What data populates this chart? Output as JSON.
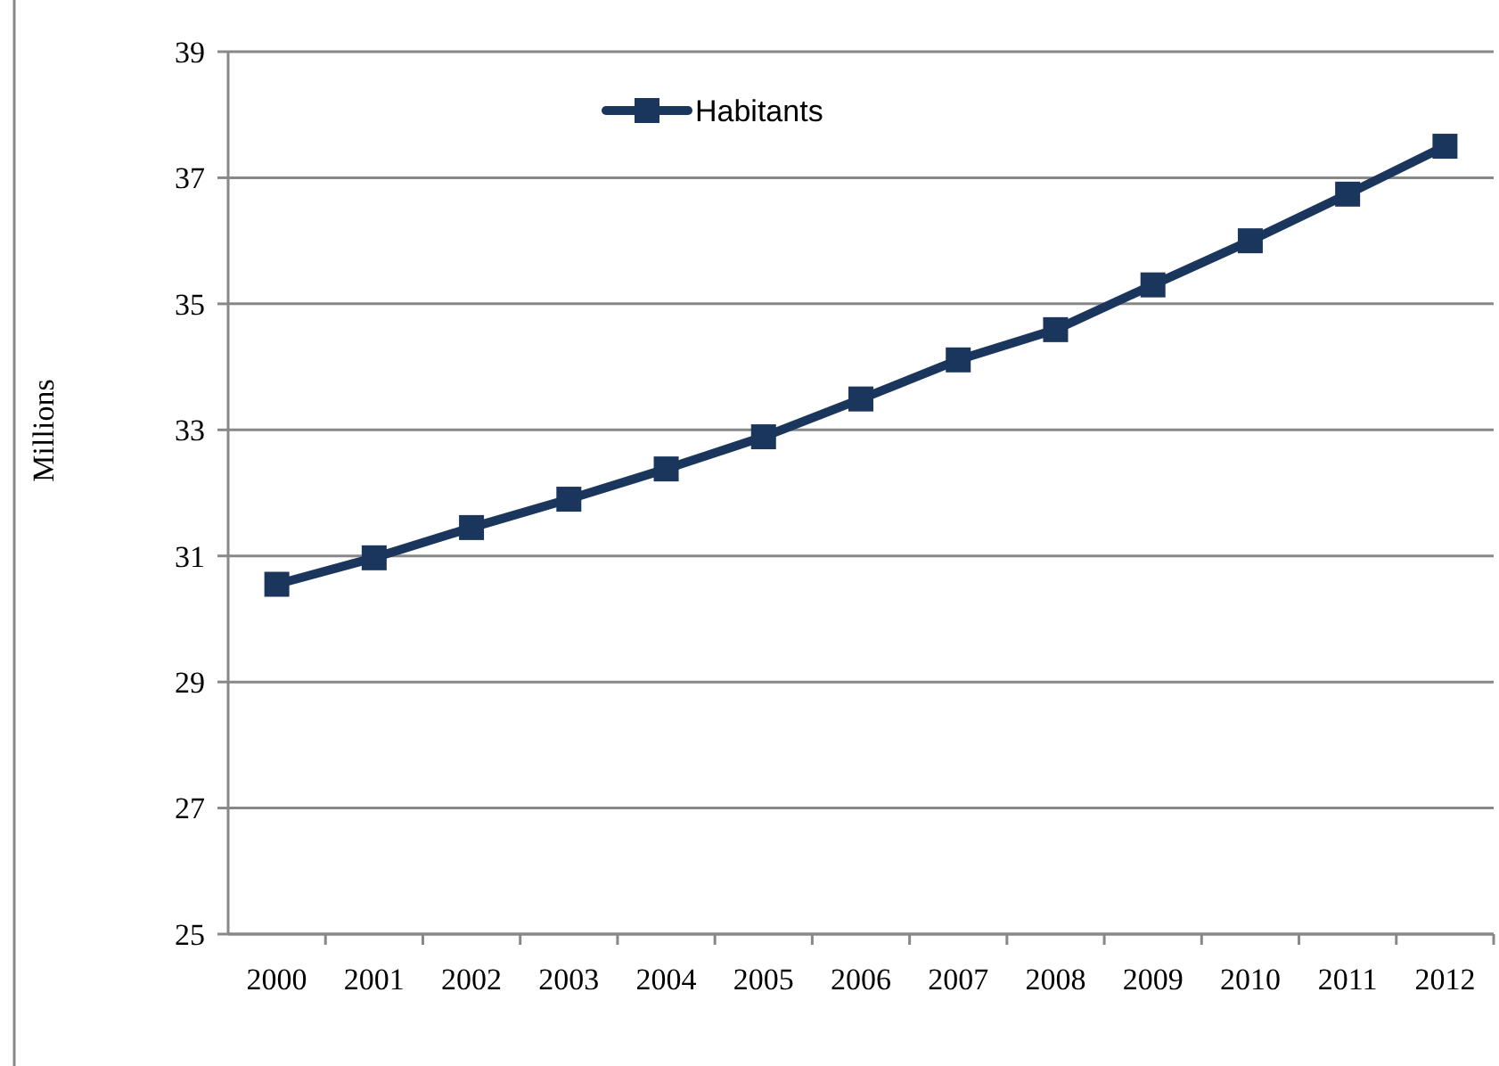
{
  "chart_data": {
    "type": "line",
    "ylabel": "Millions",
    "categories": [
      "2000",
      "2001",
      "2002",
      "2003",
      "2004",
      "2005",
      "2006",
      "2007",
      "2008",
      "2009",
      "2010",
      "2011",
      "2012"
    ],
    "series": [
      {
        "name": "Habitants",
        "color": "#1b365d",
        "values": [
          30.55,
          30.97,
          31.45,
          31.9,
          32.38,
          32.89,
          33.49,
          34.11,
          34.59,
          35.3,
          36.0,
          36.74,
          37.5
        ]
      }
    ],
    "ylim": [
      25,
      39
    ],
    "yticks": [
      25,
      27,
      29,
      31,
      33,
      35,
      37,
      39
    ],
    "grid": "y",
    "legend": "top",
    "marker": "square",
    "line_style": "solid"
  }
}
